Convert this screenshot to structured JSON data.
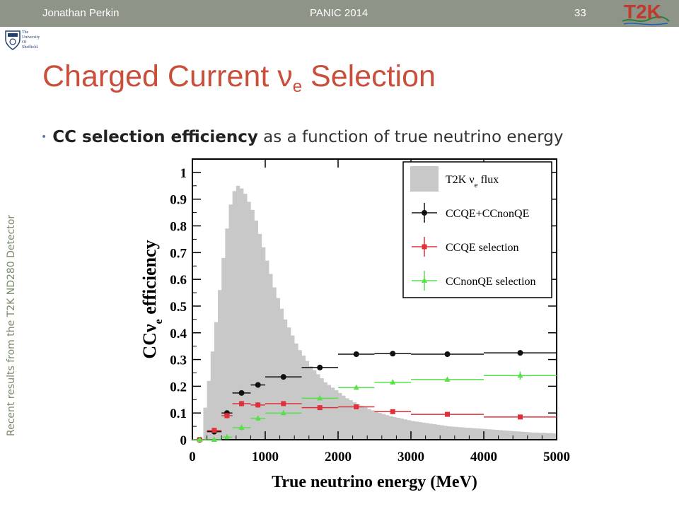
{
  "header": {
    "author": "Jonathan Perkin",
    "conference": "PANIC 2014",
    "slide_number": "33",
    "logo_text": "T2K"
  },
  "university_logo": {
    "lines": [
      "The",
      "University",
      "Of",
      "Sheffield."
    ]
  },
  "title": {
    "main": "Charged Current ν",
    "sub": "e",
    "rest": " Selection"
  },
  "bullet": {
    "bold": "CC selection efficiency",
    "rest": " as a function of true neutrino energy"
  },
  "side_note": "Recent results from the T2K ND280 Detector",
  "colors": {
    "title": "#c94f3b",
    "topbar": "#8e9488",
    "flux": "#c8c8c8",
    "black_series": "#111111",
    "red_series": "#e0303a",
    "green_series": "#56e04a"
  },
  "chart_data": {
    "type": "scatter",
    "xlabel": "True neutrino energy (MeV)",
    "ylabel": "CCν",
    "ylabel_sub": "e",
    "ylabel_rest": " efficiency",
    "xlim": [
      0,
      5000
    ],
    "ylim": [
      0,
      1.05
    ],
    "xticks": [
      "0",
      "1000",
      "2000",
      "3000",
      "4000",
      "5000"
    ],
    "yticks": [
      "0",
      "0.1",
      "0.2",
      "0.3",
      "0.4",
      "0.5",
      "0.6",
      "0.7",
      "0.8",
      "0.9",
      "1"
    ],
    "legend_position": "top-right",
    "legend": [
      {
        "label": "T2K ν",
        "sub": "e",
        "rest": " flux",
        "kind": "flux"
      },
      {
        "label": "CCQE+CCnonQE",
        "sub": "",
        "rest": "",
        "kind": "black"
      },
      {
        "label": "CCQE selection",
        "sub": "",
        "rest": "",
        "kind": "red"
      },
      {
        "label": "CCnonQE selection",
        "sub": "",
        "rest": "",
        "kind": "green"
      }
    ],
    "flux_histogram": {
      "bin_width": 50,
      "x_start": 0,
      "values": [
        0.0,
        0.0,
        0.0,
        0.12,
        0.22,
        0.33,
        0.44,
        0.56,
        0.68,
        0.79,
        0.88,
        0.93,
        0.95,
        0.94,
        0.92,
        0.89,
        0.86,
        0.82,
        0.77,
        0.72,
        0.67,
        0.62,
        0.57,
        0.53,
        0.49,
        0.45,
        0.42,
        0.39,
        0.36,
        0.335,
        0.315,
        0.295,
        0.275,
        0.26,
        0.245,
        0.23,
        0.215,
        0.205,
        0.195,
        0.185,
        0.175,
        0.165,
        0.155,
        0.148,
        0.14,
        0.133,
        0.127,
        0.121,
        0.115,
        0.11,
        0.105,
        0.1,
        0.096,
        0.092,
        0.088,
        0.085,
        0.082,
        0.079,
        0.076,
        0.073,
        0.07,
        0.068,
        0.066,
        0.064,
        0.062,
        0.06,
        0.058,
        0.056,
        0.054,
        0.052,
        0.05,
        0.049,
        0.048,
        0.047,
        0.046,
        0.045,
        0.044,
        0.043,
        0.042,
        0.041,
        0.04,
        0.039,
        0.038,
        0.037,
        0.036,
        0.035,
        0.034,
        0.033,
        0.032,
        0.031,
        0.03,
        0.029,
        0.028,
        0.027,
        0.027,
        0.026,
        0.026,
        0.025,
        0.025,
        0.024
      ]
    },
    "series": [
      {
        "name": "CCQE+CCnonQE",
        "color": "#111111",
        "marker": "circle",
        "points": [
          {
            "x": 100,
            "y": 0.0,
            "xlo": 0,
            "xhi": 200,
            "err": 0.005
          },
          {
            "x": 300,
            "y": 0.03,
            "xlo": 200,
            "xhi": 400,
            "err": 0.008
          },
          {
            "x": 475,
            "y": 0.1,
            "xlo": 400,
            "xhi": 550,
            "err": 0.01
          },
          {
            "x": 675,
            "y": 0.175,
            "xlo": 550,
            "xhi": 800,
            "err": 0.01
          },
          {
            "x": 900,
            "y": 0.205,
            "xlo": 800,
            "xhi": 1000,
            "err": 0.01
          },
          {
            "x": 1250,
            "y": 0.235,
            "xlo": 1000,
            "xhi": 1500,
            "err": 0.008
          },
          {
            "x": 1750,
            "y": 0.27,
            "xlo": 1500,
            "xhi": 2000,
            "err": 0.008
          },
          {
            "x": 2250,
            "y": 0.32,
            "xlo": 2000,
            "xhi": 2500,
            "err": 0.008
          },
          {
            "x": 2750,
            "y": 0.322,
            "xlo": 2500,
            "xhi": 3000,
            "err": 0.008
          },
          {
            "x": 3500,
            "y": 0.32,
            "xlo": 3000,
            "xhi": 4000,
            "err": 0.008
          },
          {
            "x": 4500,
            "y": 0.325,
            "xlo": 4000,
            "xhi": 5000,
            "err": 0.01
          }
        ]
      },
      {
        "name": "CCQE selection",
        "color": "#e0303a",
        "marker": "square",
        "points": [
          {
            "x": 100,
            "y": 0.0,
            "xlo": 0,
            "xhi": 200,
            "err": 0.005
          },
          {
            "x": 300,
            "y": 0.035,
            "xlo": 200,
            "xhi": 400,
            "err": 0.008
          },
          {
            "x": 475,
            "y": 0.09,
            "xlo": 400,
            "xhi": 550,
            "err": 0.01
          },
          {
            "x": 675,
            "y": 0.135,
            "xlo": 550,
            "xhi": 800,
            "err": 0.01
          },
          {
            "x": 900,
            "y": 0.13,
            "xlo": 800,
            "xhi": 1000,
            "err": 0.01
          },
          {
            "x": 1250,
            "y": 0.135,
            "xlo": 1000,
            "xhi": 1500,
            "err": 0.008
          },
          {
            "x": 1750,
            "y": 0.12,
            "xlo": 1500,
            "xhi": 2000,
            "err": 0.008
          },
          {
            "x": 2250,
            "y": 0.123,
            "xlo": 2000,
            "xhi": 2500,
            "err": 0.008
          },
          {
            "x": 2750,
            "y": 0.105,
            "xlo": 2500,
            "xhi": 3000,
            "err": 0.008
          },
          {
            "x": 3500,
            "y": 0.095,
            "xlo": 3000,
            "xhi": 4000,
            "err": 0.008
          },
          {
            "x": 4500,
            "y": 0.085,
            "xlo": 4000,
            "xhi": 5000,
            "err": 0.008
          }
        ]
      },
      {
        "name": "CCnonQE selection",
        "color": "#56e04a",
        "marker": "triangle",
        "points": [
          {
            "x": 100,
            "y": 0.0,
            "xlo": 0,
            "xhi": 200,
            "err": 0.004
          },
          {
            "x": 300,
            "y": 0.0,
            "xlo": 200,
            "xhi": 400,
            "err": 0.004
          },
          {
            "x": 475,
            "y": 0.01,
            "xlo": 400,
            "xhi": 550,
            "err": 0.005
          },
          {
            "x": 675,
            "y": 0.045,
            "xlo": 550,
            "xhi": 800,
            "err": 0.01
          },
          {
            "x": 900,
            "y": 0.08,
            "xlo": 800,
            "xhi": 1000,
            "err": 0.01
          },
          {
            "x": 1250,
            "y": 0.1,
            "xlo": 1000,
            "xhi": 1500,
            "err": 0.008
          },
          {
            "x": 1750,
            "y": 0.155,
            "xlo": 1500,
            "xhi": 2000,
            "err": 0.008
          },
          {
            "x": 2250,
            "y": 0.195,
            "xlo": 2000,
            "xhi": 2500,
            "err": 0.008
          },
          {
            "x": 2750,
            "y": 0.215,
            "xlo": 2500,
            "xhi": 3000,
            "err": 0.008
          },
          {
            "x": 3500,
            "y": 0.225,
            "xlo": 3000,
            "xhi": 4000,
            "err": 0.008
          },
          {
            "x": 4500,
            "y": 0.24,
            "xlo": 4000,
            "xhi": 5000,
            "err": 0.015
          }
        ]
      }
    ]
  }
}
